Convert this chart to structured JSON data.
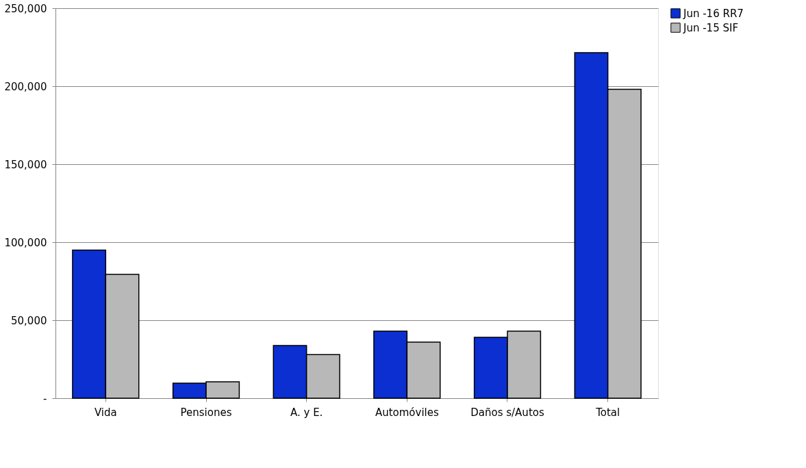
{
  "chart_data": {
    "type": "bar",
    "categories": [
      "Vida",
      "Pensiones",
      "A. y E.",
      "Automóviles",
      "Daños s/Autos",
      "Total"
    ],
    "series": [
      {
        "name": "Jun -16 RR7",
        "color": "#0b2fd0",
        "values": [
          95000,
          9600,
          33800,
          43000,
          39000,
          221500
        ]
      },
      {
        "name": "Jun -15 SIF",
        "color": "#b8b8b8",
        "values": [
          79400,
          10500,
          28000,
          36000,
          43000,
          198000
        ]
      }
    ],
    "ylim": [
      0,
      250000
    ],
    "yticks": [
      {
        "value": 0,
        "label": "-"
      },
      {
        "value": 50000,
        "label": "50,000"
      },
      {
        "value": 100000,
        "label": "100,000"
      },
      {
        "value": 150000,
        "label": "150,000"
      },
      {
        "value": 200000,
        "label": "200,000"
      },
      {
        "value": 250000,
        "label": "250,000"
      }
    ],
    "grid": "y",
    "legend": "right"
  }
}
